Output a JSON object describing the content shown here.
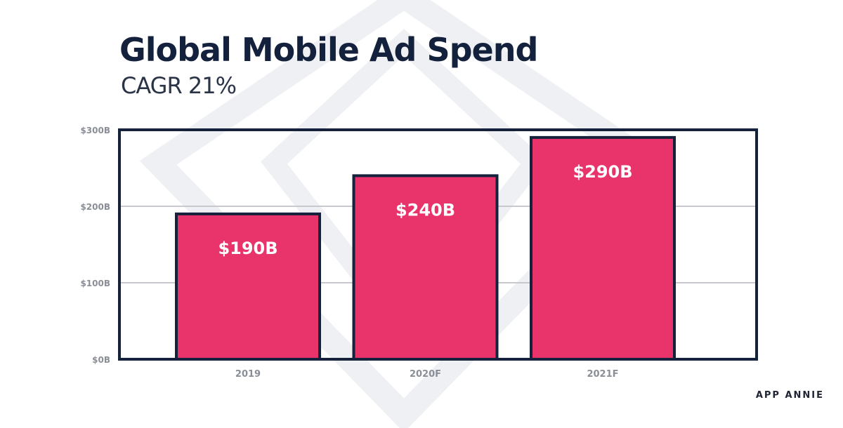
{
  "header": {
    "title": "Global Mobile Ad Spend",
    "subtitle": "CAGR 21%"
  },
  "brand": "APP ANNIE",
  "colors": {
    "bar_fill": "#e8336b",
    "bar_stroke": "#16213b",
    "frame": "#16213b",
    "grid": "#c7c9ce",
    "tick_text": "#8a8e97",
    "value_label": "#ffffff",
    "watermark": "#eef0f3"
  },
  "chart_data": {
    "type": "bar",
    "title": "Global Mobile Ad Spend",
    "subtitle": "CAGR 21%",
    "categories": [
      "2019",
      "2020F",
      "2021F"
    ],
    "values": [
      190,
      240,
      290
    ],
    "data_labels": [
      "$190B",
      "$240B",
      "$290B"
    ],
    "unit": "USD billions",
    "xlabel": "",
    "ylabel": "",
    "ylim": [
      0,
      300
    ],
    "yticks": [
      0,
      100,
      200,
      300
    ],
    "ytick_labels": [
      "$0B",
      "$100B",
      "$200B",
      "$300B"
    ],
    "grid": true,
    "legend": "none",
    "source": "APP ANNIE"
  }
}
